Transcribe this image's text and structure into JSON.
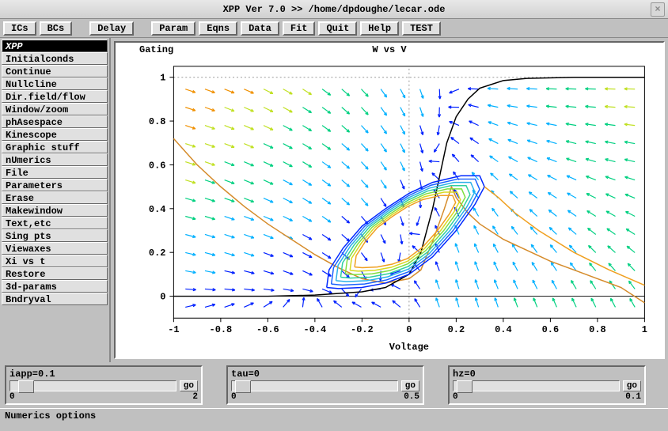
{
  "window": {
    "title": "XPP Ver 7.0 >> /home/dpdoughe/lecar.ode",
    "close_label": "×"
  },
  "toolbar": {
    "buttons": [
      "ICs",
      "BCs",
      "Delay",
      "Param",
      "Eqns",
      "Data",
      "Fit",
      "Quit",
      "Help",
      "TEST"
    ],
    "gaps_after": [
      1,
      2
    ]
  },
  "sidebar": {
    "items": [
      "XPP",
      "Initialconds",
      "Continue",
      "Nullcline",
      "Dir.field/flow",
      "Window/zoom",
      "phAsespace",
      "Kinescope",
      "Graphic stuff",
      "nUmerics",
      "File",
      "Parameters",
      "Erase",
      "Makewindow",
      "Text,etc",
      "Sing pts",
      "Viewaxes",
      "Xi vs t",
      "Restore",
      "3d-params",
      "Bndryval"
    ],
    "selected": 0
  },
  "plot": {
    "title": "W vs V",
    "side_label": "Gating",
    "xlabel": "Voltage",
    "xlim": [
      -1,
      1
    ],
    "ylim": [
      -0.1,
      1.05
    ],
    "xticks": [
      -1,
      -0.8,
      -0.6,
      -0.4,
      -0.2,
      0,
      0.2,
      0.4,
      0.6,
      0.8,
      1
    ],
    "yticks": [
      0,
      0.2,
      0.4,
      0.6,
      0.8,
      1
    ],
    "plot_bg": "#ffffff",
    "axis_color": "#000000",
    "dotted_color": "#999999",
    "nullcline1_color": "#d58b2a",
    "nullcline2_color": "#000000",
    "nullcline_v": [
      [
        -1,
        0.72
      ],
      [
        -0.9,
        0.6
      ],
      [
        -0.8,
        0.5
      ],
      [
        -0.7,
        0.41
      ],
      [
        -0.6,
        0.33
      ],
      [
        -0.5,
        0.26
      ],
      [
        -0.4,
        0.19
      ],
      [
        -0.3,
        0.13
      ],
      [
        -0.2,
        0.08
      ],
      [
        -0.1,
        0.06
      ],
      [
        0,
        0.08
      ],
      [
        0.05,
        0.12
      ],
      [
        0.1,
        0.25
      ],
      [
        0.15,
        0.4
      ],
      [
        0.18,
        0.5
      ],
      [
        0.2,
        0.45
      ],
      [
        0.25,
        0.38
      ],
      [
        0.3,
        0.33
      ],
      [
        0.4,
        0.26
      ],
      [
        0.5,
        0.21
      ],
      [
        0.6,
        0.16
      ],
      [
        0.7,
        0.12
      ],
      [
        0.8,
        0.08
      ],
      [
        0.9,
        0.04
      ],
      [
        1,
        -0.03
      ]
    ],
    "nullcline_w": [
      [
        -1,
        0.0
      ],
      [
        -0.6,
        0.0
      ],
      [
        -0.4,
        0.005
      ],
      [
        -0.2,
        0.02
      ],
      [
        -0.1,
        0.04
      ],
      [
        0,
        0.1
      ],
      [
        0.05,
        0.2
      ],
      [
        0.1,
        0.4
      ],
      [
        0.13,
        0.55
      ],
      [
        0.16,
        0.7
      ],
      [
        0.2,
        0.82
      ],
      [
        0.25,
        0.9
      ],
      [
        0.3,
        0.95
      ],
      [
        0.4,
        0.985
      ],
      [
        0.5,
        0.995
      ],
      [
        0.7,
        1.0
      ],
      [
        1,
        1.0
      ]
    ],
    "trajectory_colors": [
      "#0028ff",
      "#1a62ff",
      "#2bb0e8",
      "#30d0a0",
      "#7fdf40",
      "#d8d820",
      "#f0a020"
    ],
    "limit_cycle": [
      [
        -0.35,
        0.04
      ],
      [
        -0.3,
        0.035
      ],
      [
        -0.2,
        0.04
      ],
      [
        -0.1,
        0.06
      ],
      [
        0.0,
        0.1
      ],
      [
        0.1,
        0.18
      ],
      [
        0.2,
        0.3
      ],
      [
        0.28,
        0.42
      ],
      [
        0.32,
        0.5
      ],
      [
        0.3,
        0.55
      ],
      [
        0.22,
        0.55
      ],
      [
        0.1,
        0.52
      ],
      [
        0.0,
        0.47
      ],
      [
        -0.1,
        0.4
      ],
      [
        -0.2,
        0.32
      ],
      [
        -0.28,
        0.22
      ],
      [
        -0.34,
        0.12
      ],
      [
        -0.35,
        0.04
      ]
    ],
    "vector_field": {
      "x_start": -0.95,
      "x_end": 1.0,
      "x_step": 0.083,
      "y_start": -0.05,
      "y_end": 1.02,
      "y_step": 0.083,
      "arrow_len": 0.045
    }
  },
  "params": [
    {
      "name": "iapp",
      "value": "0.1",
      "min": "0",
      "max": "2",
      "thumb_pct": 5,
      "go": "go"
    },
    {
      "name": "tau",
      "value": "0",
      "min": "0",
      "max": "0.5",
      "thumb_pct": 2,
      "go": "go"
    },
    {
      "name": "hz",
      "value": "0",
      "min": "0",
      "max": "0.1",
      "thumb_pct": 2,
      "go": "go"
    }
  ],
  "status": {
    "text": "Numerics options"
  }
}
